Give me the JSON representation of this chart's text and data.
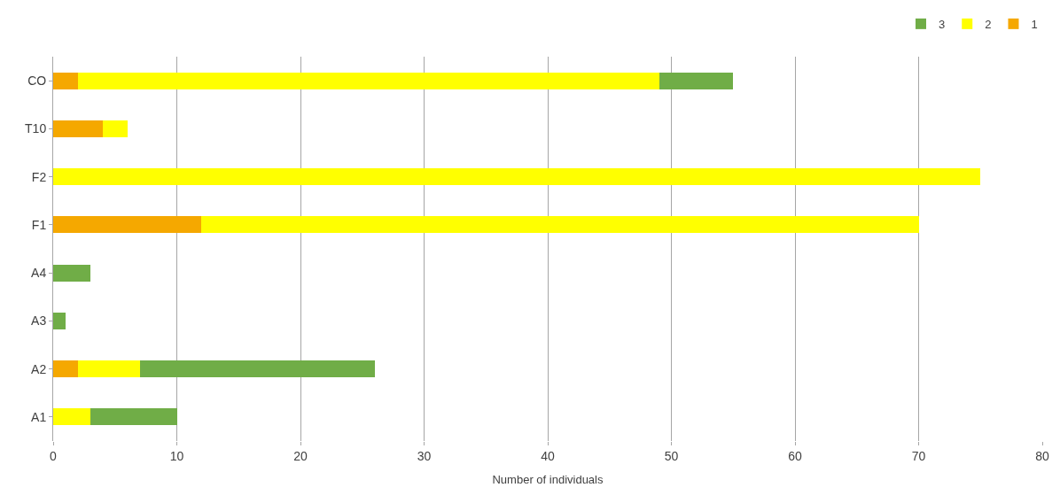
{
  "chart_data": {
    "type": "bar",
    "orientation": "horizontal",
    "stacked": true,
    "xlabel": "Number of individuals",
    "categories": [
      "CO",
      "T10",
      "F2",
      "F1",
      "A4",
      "A3",
      "A2",
      "A1"
    ],
    "series": [
      {
        "name": "1",
        "color": "#f5a800",
        "values": [
          2,
          4,
          0,
          12,
          0,
          0,
          2,
          0
        ]
      },
      {
        "name": "2",
        "color": "#ffff00",
        "values": [
          47,
          2,
          75,
          58,
          0,
          0,
          5,
          3
        ]
      },
      {
        "name": "3",
        "color": "#70ad47",
        "values": [
          6,
          0,
          0,
          0,
          3,
          1,
          19,
          7
        ]
      }
    ],
    "xlim": [
      0,
      80
    ],
    "xticks": [
      0,
      10,
      20,
      30,
      40,
      50,
      60,
      70,
      80
    ],
    "grid": "x",
    "legend": "top right"
  }
}
